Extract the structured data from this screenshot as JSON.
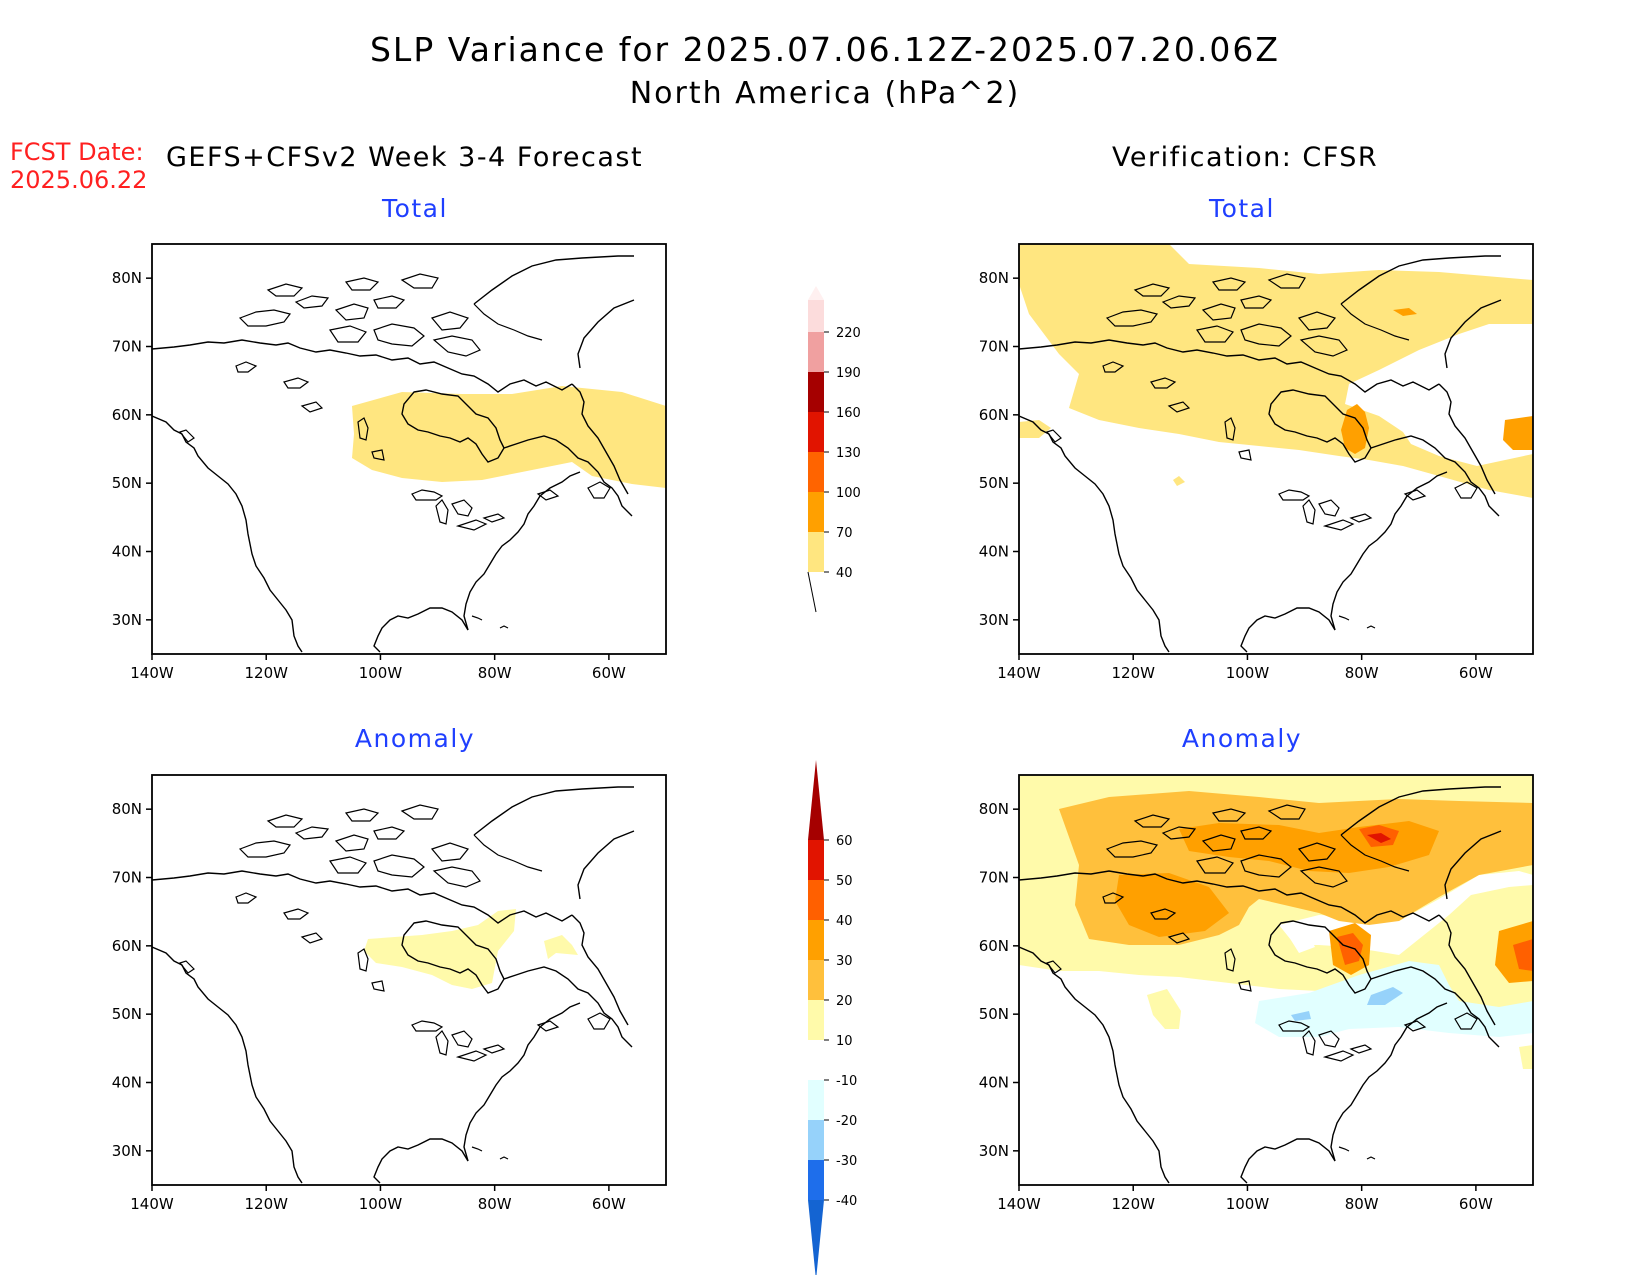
{
  "header": {
    "title": "SLP Variance for 2025.07.06.12Z-2025.07.20.06Z",
    "subtitle": "North America (hPa^2)",
    "fcst_label": "FCST Date:",
    "fcst_date": "2025.06.22",
    "left_heading": "GEFS+CFSv2 Week 3-4 Forecast",
    "right_heading": "Verification: CFSR"
  },
  "panels": [
    {
      "id": "forecast-total",
      "title": "Total"
    },
    {
      "id": "verification-total",
      "title": "Total"
    },
    {
      "id": "forecast-anomaly",
      "title": "Anomaly"
    },
    {
      "id": "verification-anomaly",
      "title": "Anomaly"
    }
  ],
  "map_axes": {
    "lon_labels": [
      "140W",
      "120W",
      "100W",
      "80W",
      "60W"
    ],
    "lon_values": [
      -140,
      -120,
      -100,
      -80,
      -60
    ],
    "lat_labels": [
      "80N",
      "70N",
      "60N",
      "50N",
      "40N",
      "30N"
    ],
    "lat_values": [
      80,
      70,
      60,
      50,
      40,
      30
    ],
    "lon_range": [
      -140,
      -50
    ],
    "lat_range": [
      25,
      85
    ]
  },
  "colorbars": {
    "total": {
      "labels": [
        "40",
        "70",
        "100",
        "130",
        "160",
        "190",
        "220"
      ],
      "colors": [
        "#ffe680",
        "#ffa000",
        "#ff6400",
        "#e11400",
        "#a50000",
        "#f0a0a0",
        "#fcdcdc",
        "#fff0f0"
      ]
    },
    "anomaly": {
      "labels": [
        "-40",
        "-30",
        "-20",
        "-10",
        "10",
        "20",
        "30",
        "40",
        "50",
        "60"
      ],
      "colors": [
        "#1464d2",
        "#1e6eeb",
        "#96d2fa",
        "#e1ffff",
        "#ffffff",
        "#fffaaa",
        "#ffc03c",
        "#ffa000",
        "#ff6000",
        "#e11400",
        "#a50000"
      ]
    }
  },
  "colors": {
    "title_red": "#ff2020",
    "panel_title_blue": "#1f3fff"
  }
}
